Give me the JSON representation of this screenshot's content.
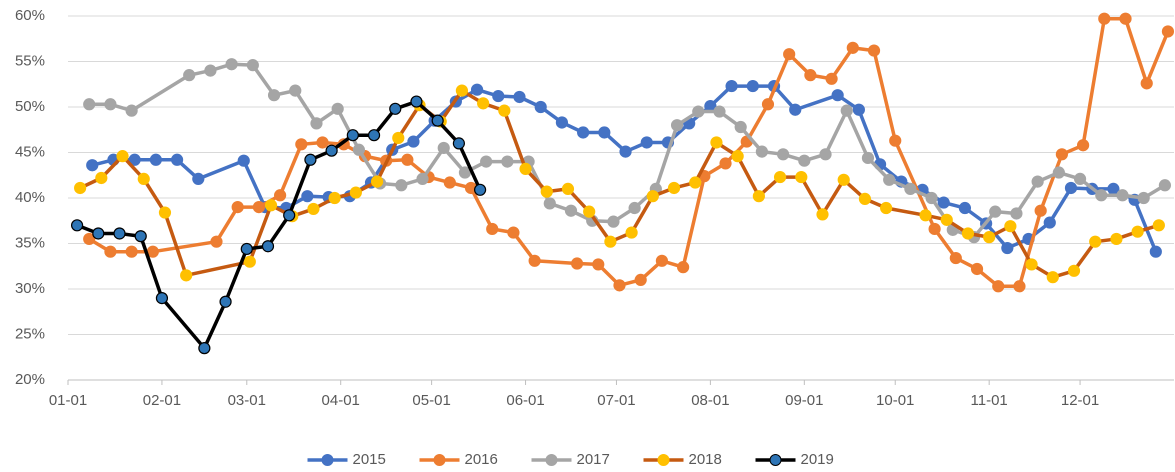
{
  "chart_data": {
    "type": "line",
    "xlim": [
      0,
      365
    ],
    "xticks": [
      {
        "value": 0,
        "label": "01-01"
      },
      {
        "value": 31,
        "label": "02-01"
      },
      {
        "value": 59,
        "label": "03-01"
      },
      {
        "value": 90,
        "label": "04-01"
      },
      {
        "value": 120,
        "label": "05-01"
      },
      {
        "value": 151,
        "label": "06-01"
      },
      {
        "value": 181,
        "label": "07-01"
      },
      {
        "value": 212,
        "label": "08-01"
      },
      {
        "value": 243,
        "label": "09-01"
      },
      {
        "value": 273,
        "label": "10-01"
      },
      {
        "value": 304,
        "label": "11-01"
      },
      {
        "value": 334,
        "label": "12-01"
      }
    ],
    "ylim": [
      20,
      60
    ],
    "yticks": [
      {
        "value": 20,
        "label": "20%"
      },
      {
        "value": 25,
        "label": "25%"
      },
      {
        "value": 30,
        "label": "30%"
      },
      {
        "value": 35,
        "label": "35%"
      },
      {
        "value": 40,
        "label": "40%"
      },
      {
        "value": 45,
        "label": "45%"
      },
      {
        "value": 50,
        "label": "50%"
      },
      {
        "value": 55,
        "label": "55%"
      },
      {
        "value": 60,
        "label": "60%"
      }
    ],
    "grid": true,
    "legend": "bottom",
    "series": [
      {
        "name": "2015",
        "color": "#4472c4",
        "x": [
          8,
          15,
          22,
          29,
          36,
          43,
          58,
          65,
          72,
          79,
          86,
          93,
          100,
          107,
          114,
          121,
          128,
          135,
          142,
          149,
          156,
          163,
          170,
          177,
          184,
          191,
          198,
          205,
          212,
          219,
          226,
          233,
          240,
          254,
          261,
          268,
          275,
          282,
          289,
          296,
          303,
          310,
          317,
          324,
          331,
          338,
          345,
          352,
          359
        ],
        "values": [
          43.6,
          44.2,
          44.2,
          44.2,
          44.2,
          42.1,
          44.1,
          39.0,
          38.9,
          40.2,
          40.1,
          40.2,
          41.7,
          45.3,
          46.2,
          48.5,
          50.6,
          51.9,
          51.2,
          51.1,
          50.0,
          48.3,
          47.2,
          47.2,
          45.1,
          46.1,
          46.1,
          48.2,
          50.1,
          52.3,
          52.3,
          52.3,
          49.7,
          51.3,
          49.7,
          43.7,
          41.8,
          40.9,
          39.5,
          38.9,
          37.2,
          34.5,
          35.5,
          37.3,
          41.1,
          41.0,
          41.0,
          39.8,
          34.1
        ]
      },
      {
        "name": "2016",
        "color": "#ed7d31",
        "x": [
          7,
          14,
          21,
          28,
          49,
          56,
          63,
          70,
          77,
          84,
          91,
          98,
          105,
          112,
          119,
          126,
          133,
          140,
          147,
          154,
          168,
          175,
          182,
          189,
          196,
          203,
          210,
          217,
          224,
          231,
          238,
          245,
          252,
          259,
          266,
          273,
          286,
          293,
          300,
          307,
          314,
          321,
          328,
          335,
          342,
          349,
          356,
          363
        ],
        "values": [
          35.5,
          34.1,
          34.1,
          34.1,
          35.2,
          39.0,
          39.0,
          40.3,
          45.9,
          46.1,
          45.9,
          44.6,
          44.1,
          44.2,
          42.3,
          41.7,
          41.1,
          36.6,
          36.2,
          33.1,
          32.8,
          32.7,
          30.4,
          31.0,
          33.1,
          32.4,
          42.4,
          43.8,
          46.2,
          50.3,
          55.8,
          53.5,
          53.1,
          56.5,
          56.2,
          46.3,
          36.6,
          33.4,
          32.2,
          30.3,
          30.3,
          38.6,
          44.8,
          45.8,
          59.7,
          59.7,
          52.6,
          58.3
        ]
      },
      {
        "name": "2017",
        "color": "#a5a5a5",
        "x": [
          7,
          14,
          21,
          40,
          47,
          54,
          61,
          68,
          75,
          82,
          89,
          96,
          103,
          110,
          117,
          124,
          131,
          138,
          145,
          152,
          159,
          166,
          173,
          180,
          187,
          194,
          201,
          208,
          215,
          222,
          229,
          236,
          243,
          250,
          257,
          264,
          271,
          278,
          285,
          292,
          299,
          306,
          313,
          320,
          327,
          334,
          341,
          348,
          355,
          362
        ],
        "values": [
          50.3,
          50.3,
          49.6,
          53.5,
          54.0,
          54.7,
          54.6,
          51.3,
          51.8,
          48.2,
          49.8,
          45.3,
          41.6,
          41.4,
          42.1,
          45.5,
          42.8,
          44.0,
          44.0,
          44.0,
          39.4,
          38.6,
          37.5,
          37.4,
          38.9,
          41.0,
          48.0,
          49.5,
          49.5,
          47.8,
          45.1,
          44.8,
          44.1,
          44.8,
          49.6,
          44.4,
          42.0,
          41.0,
          40.0,
          36.5,
          35.7,
          38.5,
          38.3,
          41.8,
          42.8,
          42.1,
          40.3,
          40.3,
          40.0,
          41.4
        ]
      },
      {
        "name": "2018",
        "color": "#c55a11",
        "marker_color": "#ffc000",
        "x": [
          4,
          11,
          18,
          25,
          32,
          39,
          60,
          67,
          74,
          81,
          88,
          95,
          102,
          109,
          116,
          123,
          130,
          137,
          144,
          151,
          158,
          165,
          172,
          179,
          186,
          193,
          200,
          207,
          214,
          221,
          228,
          235,
          242,
          249,
          256,
          263,
          270,
          283,
          290,
          297,
          304,
          311,
          318,
          325,
          332,
          339,
          346,
          353,
          360
        ],
        "values": [
          41.1,
          42.2,
          44.6,
          42.1,
          38.4,
          31.5,
          33.0,
          39.2,
          38.0,
          38.8,
          40.0,
          40.6,
          41.8,
          46.6,
          50.2,
          48.4,
          51.8,
          50.4,
          49.6,
          43.2,
          40.7,
          41.0,
          38.5,
          35.2,
          36.2,
          40.2,
          41.1,
          41.7,
          46.1,
          44.6,
          40.2,
          42.3,
          42.3,
          38.2,
          42.0,
          39.9,
          38.9,
          38.1,
          37.6,
          36.1,
          35.7,
          36.9,
          32.7,
          31.3,
          32.0,
          35.2,
          35.5,
          36.3,
          37.0
        ]
      },
      {
        "name": "2019",
        "color": "#000000",
        "marker_color": "#2e75b6",
        "x": [
          3,
          10,
          17,
          24,
          31,
          45,
          52,
          59,
          66,
          73,
          80,
          87,
          94,
          101,
          108,
          115,
          122,
          129,
          136
        ],
        "values": [
          37.0,
          36.1,
          36.1,
          35.8,
          29.0,
          23.5,
          28.6,
          34.4,
          34.7,
          38.1,
          44.2,
          45.2,
          46.9,
          46.9,
          49.8,
          50.6,
          48.5,
          46.0,
          40.9
        ]
      }
    ]
  }
}
